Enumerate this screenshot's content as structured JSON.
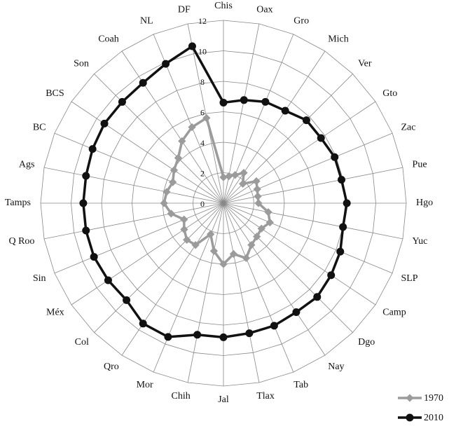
{
  "chart_data": {
    "type": "radar",
    "categories": [
      "Chis",
      "Oax",
      "Gro",
      "Mich",
      "Ver",
      "Gto",
      "Zac",
      "Pue",
      "Hgo",
      "Yuc",
      "SLP",
      "Camp",
      "Dgo",
      "Nay",
      "Tab",
      "Tlax",
      "Jal",
      "Chih",
      "Mor",
      "Qro",
      "Col",
      "Méx",
      "Sin",
      "Q Roo",
      "Tamps",
      "Ags",
      "BC",
      "BCS",
      "Son",
      "Coah",
      "NL",
      "DF"
    ],
    "series": [
      {
        "name": "1970",
        "color": "#9b9b9b",
        "marker": "diamond",
        "values": [
          1.7,
          1.8,
          2.0,
          2.4,
          1.8,
          2.6,
          2.4,
          2.3,
          2.3,
          3.0,
          3.3,
          3.0,
          3.1,
          3.3,
          3.9,
          3.4,
          4.0,
          3.2,
          2.2,
          3.3,
          3.4,
          3.1,
          2.8,
          3.5,
          3.9,
          3.8,
          3.6,
          3.9,
          4.2,
          4.9,
          5.4,
          5.7
        ]
      },
      {
        "name": "2010",
        "color": "#111111",
        "marker": "circle",
        "values": [
          6.6,
          6.9,
          7.2,
          7.3,
          7.7,
          7.7,
          7.9,
          7.9,
          8.1,
          8.0,
          8.3,
          8.5,
          8.7,
          8.6,
          8.7,
          8.7,
          8.8,
          8.8,
          9.5,
          9.5,
          9.0,
          9.1,
          9.2,
          9.2,
          9.2,
          9.2,
          9.3,
          9.4,
          9.4,
          9.5,
          9.9,
          10.5
        ]
      }
    ],
    "rlim": [
      0,
      12
    ],
    "rticks": [
      0,
      2,
      4,
      6,
      8,
      10,
      12
    ],
    "grid": true,
    "legend": "bottom-right"
  }
}
